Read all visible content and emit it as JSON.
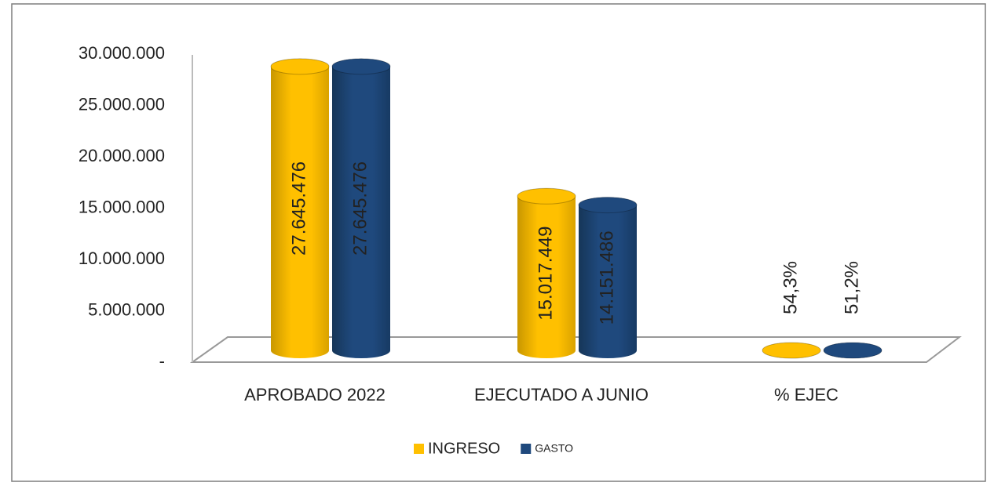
{
  "chart_data": {
    "type": "bar",
    "categories": [
      "APROBADO 2022",
      "EJECUTADO A JUNIO",
      "% EJEC"
    ],
    "series": [
      {
        "name": "INGRESO",
        "color": "#ffc000",
        "values": [
          27645476,
          15017449,
          54.3
        ],
        "value_labels": [
          "27.645.476",
          "15.017.449",
          "54,3%"
        ]
      },
      {
        "name": "GASTO",
        "color": "#1f497d",
        "values": [
          27645476,
          14151486,
          51.2
        ],
        "value_labels": [
          "27.645.476",
          "14.151.486",
          "51,2%"
        ]
      }
    ],
    "ylim": [
      0,
      30000000
    ],
    "yticks": [
      {
        "value": 0,
        "label": "-"
      },
      {
        "value": 5000000,
        "label": "5.000.000"
      },
      {
        "value": 10000000,
        "label": "10.000.000"
      },
      {
        "value": 15000000,
        "label": "15.000.000"
      },
      {
        "value": 20000000,
        "label": "20.000.000"
      },
      {
        "value": 25000000,
        "label": "25.000.000"
      },
      {
        "value": 30000000,
        "label": "30.000.000"
      }
    ],
    "legend": "bottom"
  }
}
